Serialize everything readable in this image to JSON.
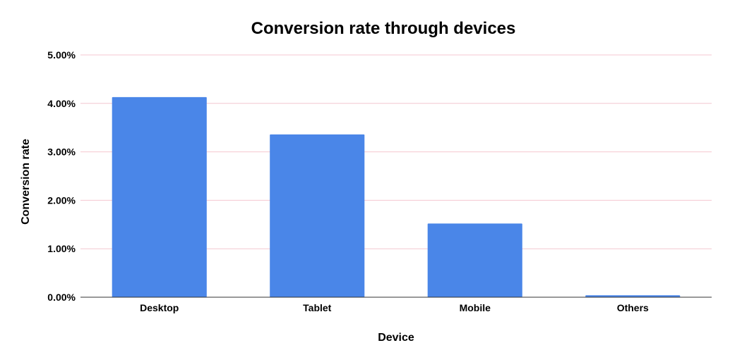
{
  "chart_data": {
    "type": "bar",
    "title": "Conversion rate through devices",
    "xlabel": "Device",
    "ylabel": "Conversion rate",
    "categories": [
      "Desktop",
      "Tablet",
      "Mobile",
      "Others"
    ],
    "values": [
      4.13,
      3.36,
      1.52,
      0.04
    ],
    "ylim": [
      0,
      5
    ],
    "yticks": [
      0,
      1,
      2,
      3,
      4,
      5
    ],
    "ytick_labels": [
      "0.00%",
      "1.00%",
      "2.00%",
      "3.00%",
      "4.00%",
      "5.00%"
    ],
    "grid": true,
    "legend": "none",
    "colors": {
      "bar": "#4a86e8",
      "grid": "#f4c7d0",
      "axis": "#333333",
      "text": "#000000"
    }
  }
}
